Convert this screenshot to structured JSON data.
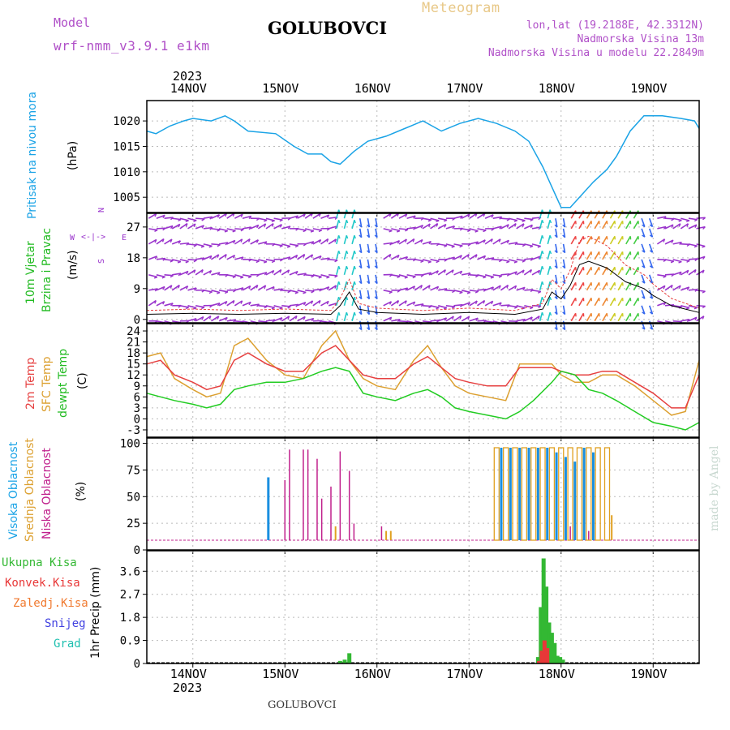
{
  "header": {
    "model_label": "Model",
    "model_name": "wrf-nmm_v3.9.1 e1km",
    "station": "GOLUBOVCI",
    "product": "Meteogram",
    "coords": "lon,lat (19.2188E, 42.3312N)",
    "altitude": "Nadmorska Visina 13m",
    "model_altitude": "Nadmorska Visina u modelu 22.2849m",
    "footer_station": "GOLUBOVCI",
    "watermark": "made by Angel"
  },
  "colors": {
    "pressure": "#1aa3e6",
    "temp": "#e64040",
    "sfc_temp": "#dca030",
    "dewpt": "#22cc22",
    "low_cloud": "#c0208c",
    "mid_cloud": "#e0a020",
    "high_cloud": "#1a8fe0",
    "precip_total": "#33b833",
    "precip_conv": "#e83838",
    "wind_label": "#9933cc",
    "grid": "#bbbbbb"
  },
  "axes": {
    "top_year": "2023",
    "bottom_year": "2023",
    "days": [
      "14NOV",
      "15NOV",
      "16NOV",
      "17NOV",
      "18NOV",
      "19NOV"
    ]
  },
  "panels": {
    "pressure": {
      "label1": "Pritisak na nivou mora",
      "unit": "(hPa)"
    },
    "wind": {
      "label1": "10m Vjetar",
      "label2": "Brzina i Pravac",
      "unit": "(m/s)",
      "compass_n": "N",
      "compass_s": "S",
      "compass_e": "E",
      "compass_w": "W"
    },
    "temp": {
      "label1": "2m Temp",
      "label2": "SFC Temp",
      "label3": "dewpt Temp",
      "unit": "(C)"
    },
    "cloud": {
      "label1": "Visoka Oblacnost",
      "label2": "Srednja Oblacnost",
      "label3": "Niska Oblacnost",
      "unit": "(%)"
    },
    "precip": {
      "labels": [
        "Ukupna Kisa",
        "Konvek.Kisa",
        "Zaledj.Kisa",
        "Snijeg",
        "Grad"
      ],
      "unit": "1hr Precip (mm)"
    }
  },
  "chart_data": [
    {
      "type": "line",
      "ylim": [
        1002,
        1024
      ],
      "yticks": [
        1005,
        1010,
        1015,
        1020
      ],
      "x": [
        13.5,
        13.6,
        13.75,
        13.9,
        14.0,
        14.2,
        14.35,
        14.45,
        14.6,
        14.9,
        15.1,
        15.25,
        15.4,
        15.5,
        15.6,
        15.75,
        15.9,
        16.1,
        16.3,
        16.5,
        16.7,
        16.9,
        17.1,
        17.3,
        17.5,
        17.65,
        17.8,
        17.9,
        18.0,
        18.1,
        18.2,
        18.35,
        18.5,
        18.6,
        18.75,
        18.9,
        19.1,
        19.3,
        19.45,
        19.5
      ],
      "y": [
        1018,
        1017.5,
        1019,
        1020,
        1020.5,
        1020,
        1021,
        1020,
        1018,
        1017.5,
        1015,
        1013.5,
        1013.5,
        1012,
        1011.5,
        1014,
        1016,
        1017,
        1018.5,
        1020,
        1018,
        1019.5,
        1020.5,
        1019.5,
        1018,
        1016,
        1011,
        1007,
        1003,
        1003,
        1005,
        1008,
        1010.5,
        1013,
        1018,
        1021,
        1021,
        1020.5,
        1020,
        1018.5
      ]
    },
    {
      "type": "scatter",
      "ylim": [
        -1,
        31
      ],
      "yticks": [
        0,
        9,
        18,
        27
      ],
      "note": "wind barbs per level; speed line shown",
      "speed_x": [
        13.5,
        14.0,
        14.5,
        15.0,
        15.5,
        15.6,
        15.7,
        15.8,
        16.0,
        16.5,
        17.0,
        17.5,
        17.8,
        17.9,
        18.0,
        18.1,
        18.2,
        18.3,
        18.5,
        18.7,
        18.9,
        19.0,
        19.2,
        19.5
      ],
      "speed_y": [
        1.5,
        1.8,
        1.5,
        1.8,
        1.5,
        4,
        8,
        3,
        2,
        1.5,
        2,
        1.5,
        3,
        8,
        6,
        10,
        16,
        17,
        15,
        11,
        9,
        7,
        4,
        2
      ]
    },
    {
      "type": "line",
      "ylim": [
        -5,
        26
      ],
      "yticks": [
        -3,
        0,
        3,
        6,
        9,
        12,
        15,
        18,
        21,
        24
      ],
      "x": [
        13.5,
        13.65,
        13.8,
        14.0,
        14.15,
        14.3,
        14.45,
        14.6,
        14.8,
        15.0,
        15.2,
        15.4,
        15.55,
        15.7,
        15.85,
        16.0,
        16.2,
        16.4,
        16.55,
        16.7,
        16.85,
        17.0,
        17.2,
        17.4,
        17.55,
        17.7,
        17.9,
        18.0,
        18.15,
        18.3,
        18.45,
        18.6,
        18.8,
        19.0,
        19.2,
        19.35,
        19.5
      ],
      "series": [
        {
          "name": "2m Temp",
          "values": [
            15,
            16,
            12,
            10,
            8,
            9,
            16,
            18,
            15,
            13,
            13,
            18,
            20,
            16,
            12,
            11,
            11,
            15,
            17,
            14,
            11,
            10,
            9,
            9,
            14,
            14,
            14,
            13,
            12,
            12,
            13,
            13,
            10,
            7,
            3,
            3,
            12
          ]
        },
        {
          "name": "SFC Temp",
          "values": [
            17,
            18,
            11,
            8,
            6,
            7,
            20,
            22,
            16,
            12,
            11,
            20,
            24,
            16,
            11,
            9,
            8,
            16,
            20,
            14,
            9,
            7,
            6,
            5,
            15,
            15,
            15,
            12,
            10,
            10,
            12,
            12,
            9,
            5,
            1,
            2,
            16
          ]
        },
        {
          "name": "dewpt Temp",
          "values": [
            7,
            6,
            5,
            4,
            3,
            4,
            8,
            9,
            10,
            10,
            11,
            13,
            14,
            13,
            7,
            6,
            5,
            7,
            8,
            6,
            3,
            2,
            1,
            0,
            2,
            5,
            10,
            13,
            12,
            8,
            7,
            5,
            2,
            -1,
            -2,
            -3,
            -1
          ]
        }
      ]
    },
    {
      "type": "bar",
      "ylim": [
        0,
        105
      ],
      "yticks": [
        0,
        25,
        50,
        75,
        100
      ],
      "series": [
        {
          "name": "Niska Oblacnost",
          "x": [
            15.0,
            15.05,
            15.2,
            15.25,
            15.35,
            15.4,
            15.5,
            15.6,
            15.7,
            15.75,
            16.05,
            17.55,
            17.95,
            18.1,
            18.3
          ],
          "values": [
            65,
            98,
            98,
            98,
            88,
            45,
            58,
            96,
            75,
            18,
            15,
            55,
            28,
            15,
            10
          ]
        },
        {
          "name": "Srednja Oblacnost",
          "x": [
            15.55,
            16.1,
            16.15,
            17.3,
            17.4,
            17.5,
            17.6,
            17.7,
            17.8,
            17.9,
            18.0,
            18.1,
            18.2,
            18.3,
            18.4,
            18.5,
            18.55
          ],
          "values": [
            15,
            10,
            10,
            100,
            100,
            100,
            100,
            100,
            100,
            100,
            100,
            100,
            100,
            100,
            100,
            100,
            27
          ]
        },
        {
          "name": "Visoka Oblacnost",
          "x": [
            14.82,
            17.35,
            17.45,
            17.55,
            17.65,
            17.75,
            17.85,
            17.95,
            18.05,
            18.15,
            18.25,
            18.35
          ],
          "values": [
            68,
            100,
            100,
            100,
            100,
            100,
            100,
            95,
            90,
            85,
            100,
            95
          ]
        }
      ]
    },
    {
      "type": "bar",
      "ylim": [
        0,
        4.4
      ],
      "yticks": [
        0,
        0.9,
        1.8,
        2.7,
        3.6
      ],
      "series": [
        {
          "name": "Ukupna Kisa",
          "x": [
            15.6,
            15.65,
            15.7,
            17.75,
            17.78,
            17.81,
            17.84,
            17.87,
            17.9,
            17.93,
            17.96,
            17.99,
            18.02
          ],
          "values": [
            0.1,
            0.15,
            0.4,
            0.25,
            2.2,
            4.1,
            3.0,
            1.6,
            1.2,
            0.8,
            0.3,
            0.25,
            0.15
          ]
        },
        {
          "name": "Konvek.Kisa",
          "x": [
            17.76,
            17.79,
            17.82,
            17.85
          ],
          "values": [
            0.1,
            0.5,
            0.9,
            0.6
          ]
        }
      ]
    }
  ]
}
